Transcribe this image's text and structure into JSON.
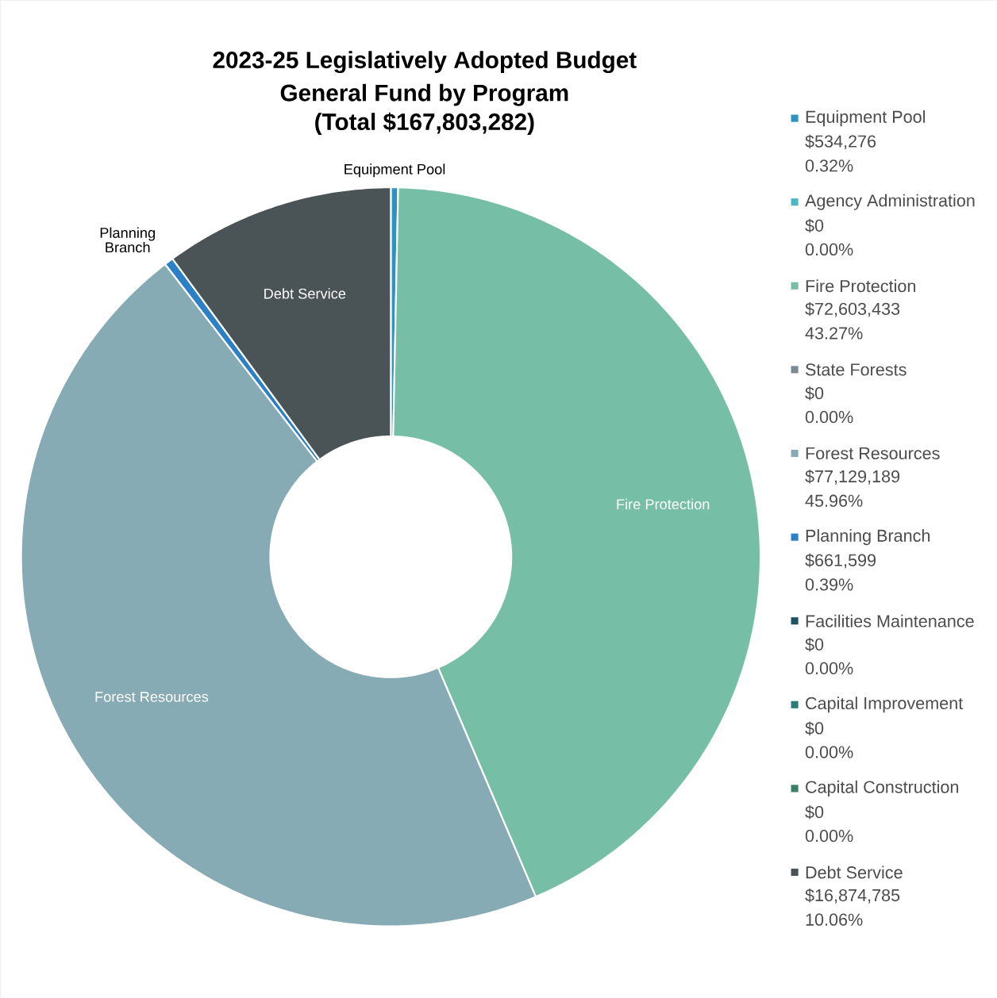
{
  "chart_data": {
    "type": "donut",
    "title": "2023-25 Legislatively Adopted Budget",
    "subtitle": "General Fund by Program\n(Total $167,803,282)",
    "categories": [
      "Equipment Pool",
      "Agency Administration",
      "Fire Protection",
      "State Forests",
      "Forest Resources",
      "Planning Branch",
      "Facilities Maintenance",
      "Capital Improvement",
      "Capital Construction",
      "Debt Service"
    ],
    "values": [
      534276,
      0,
      72603433,
      0,
      77129189,
      661599,
      0,
      0,
      0,
      16874785
    ],
    "colors": [
      "#2e93c0",
      "#4cb6c4",
      "#77bea7",
      "#7a8b91",
      "#86abb4",
      "#2b80c6",
      "#1e5266",
      "#2b7b7d",
      "#3a8068",
      "#4a5457"
    ],
    "value_labels": [
      "$534,276",
      "$0",
      "$72,603,433",
      "$0",
      "$77,129,189",
      "$661,599",
      "$0",
      "$0",
      "$0",
      "$16,874,785"
    ],
    "annotations": [
      "0.32%",
      "0.00%",
      "43.27%",
      "0.00%",
      "45.96%",
      "0.39%",
      "0.00%",
      "0.00%",
      "0.00%",
      "10.06%"
    ],
    "legend": "right"
  }
}
